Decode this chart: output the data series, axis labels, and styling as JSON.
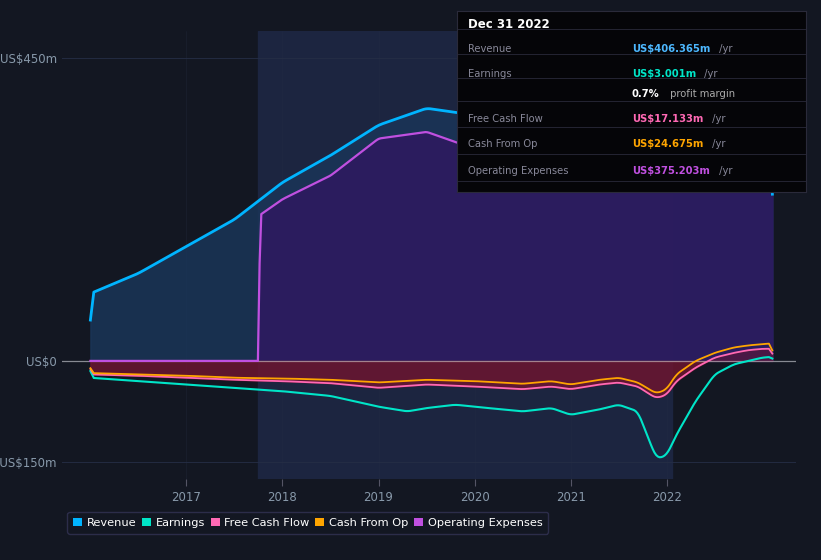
{
  "bg_color": "#131722",
  "shaded_color": "#1c2540",
  "grid_color": "#252d45",
  "revenue_line": "#00b4ff",
  "revenue_fill": "#1a3558",
  "opex_line": "#c050e0",
  "opex_fill": "#2d1a60",
  "earnings_line": "#00e5c8",
  "fcf_line": "#ff69b4",
  "fcf_fill": "#6b1530",
  "cashop_line": "#ffa500",
  "zero_line": "#cccccc",
  "ytick_vals": [
    -150,
    0,
    450
  ],
  "ytick_labels": [
    "-US$150m",
    "US$0",
    "US$450m"
  ],
  "xtick_years": [
    2017,
    2018,
    2019,
    2020,
    2021,
    2022
  ],
  "xlim": [
    2015.7,
    2023.35
  ],
  "ylim": [
    -175,
    490
  ],
  "shaded_start": 2017.75,
  "shaded_end": 2022.05,
  "info_box": {
    "date": "Dec 31 2022",
    "rows": [
      {
        "label": "Revenue",
        "value": "US$406.365m",
        "vcolor": "#4db8ff"
      },
      {
        "label": "Earnings",
        "value": "US$3.001m",
        "vcolor": "#00e5c8"
      },
      {
        "label": "",
        "value": "",
        "vcolor": "#cccccc"
      },
      {
        "label": "Free Cash Flow",
        "value": "US$17.133m",
        "vcolor": "#ff69b4"
      },
      {
        "label": "Cash From Op",
        "value": "US$24.675m",
        "vcolor": "#ffa500"
      },
      {
        "label": "Operating Expenses",
        "value": "US$375.203m",
        "vcolor": "#c050e0"
      }
    ]
  },
  "legend": [
    {
      "label": "Revenue",
      "color": "#00b4ff"
    },
    {
      "label": "Earnings",
      "color": "#00e5c8"
    },
    {
      "label": "Free Cash Flow",
      "color": "#ff69b4"
    },
    {
      "label": "Cash From Op",
      "color": "#ffa500"
    },
    {
      "label": "Operating Expenses",
      "color": "#c050e0"
    }
  ]
}
